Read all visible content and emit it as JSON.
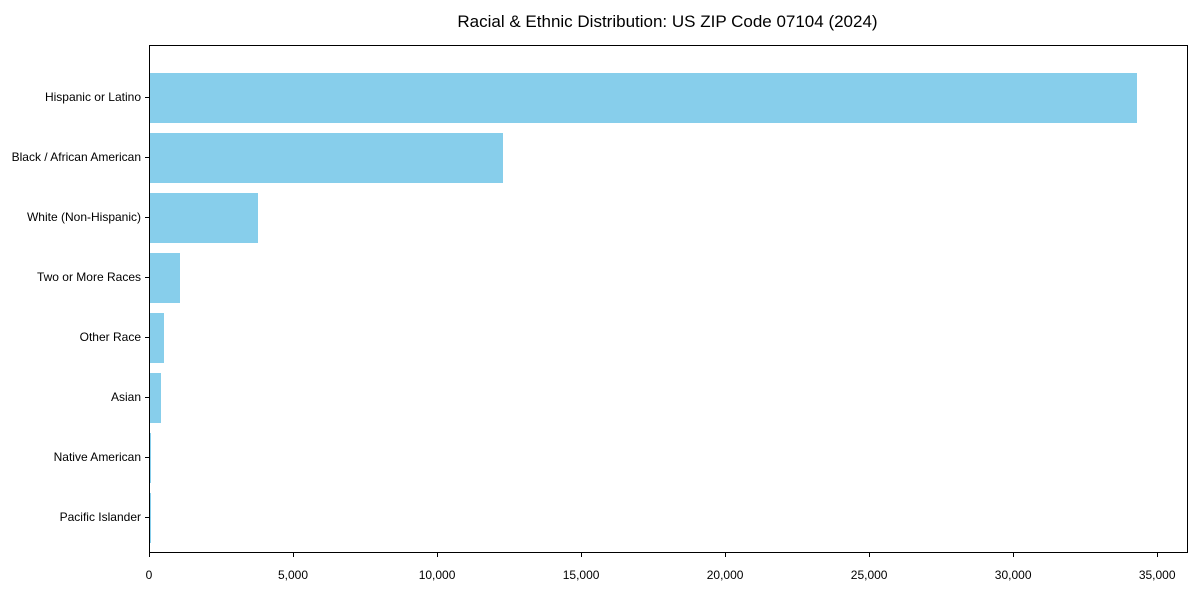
{
  "figure": {
    "title": "Racial & Ethnic Distribution: US ZIP Code 07104 (2024)"
  },
  "chart_data": {
    "type": "bar",
    "orientation": "horizontal",
    "title": "Racial & Ethnic Distribution: US ZIP Code 07104 (2024)",
    "categories": [
      "Hispanic or Latino",
      "Black / African American",
      "White (Non-Hispanic)",
      "Two or More Races",
      "Other Race",
      "Asian",
      "Native American",
      "Pacific Islander"
    ],
    "values": [
      34270,
      12250,
      3750,
      1040,
      490,
      380,
      40,
      15
    ],
    "xlabel": "",
    "ylabel": "",
    "xlim": [
      0,
      36000
    ],
    "xticks": [
      0,
      5000,
      10000,
      15000,
      20000,
      25000,
      30000,
      35000
    ],
    "xtick_labels": [
      "0",
      "5,000",
      "10,000",
      "15,000",
      "20,000",
      "25,000",
      "30,000",
      "35,000"
    ],
    "bar_color": "#87CEEB",
    "grid": false,
    "legend_position": "none",
    "background_color": "#ffffff"
  }
}
